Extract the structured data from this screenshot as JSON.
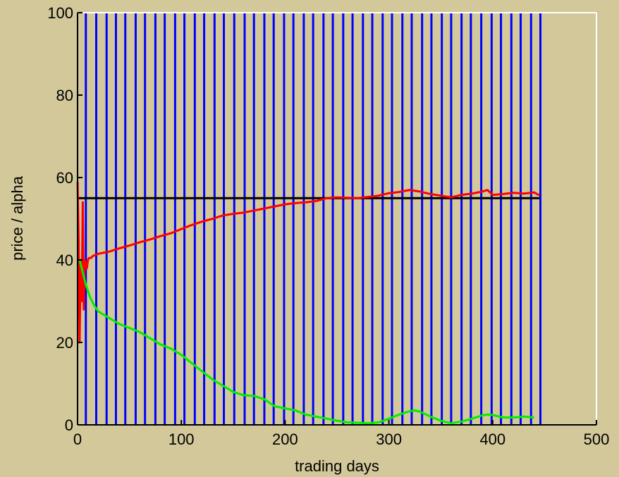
{
  "chart_data": {
    "type": "line",
    "title": "",
    "xlabel": "trading days",
    "ylabel": "price / alpha",
    "xlim": [
      0,
      500
    ],
    "ylim": [
      0,
      100
    ],
    "x_ticks": [
      0,
      100,
      200,
      300,
      400,
      500
    ],
    "y_ticks": [
      0,
      20,
      40,
      60,
      80,
      100
    ],
    "grid": false,
    "legend": "none",
    "colors": {
      "background": "#d2c89a",
      "plot_area": "#d2c89a",
      "box": "#ffffff",
      "axis": "#000000",
      "vertical_lines": "#0000ff",
      "reference_line": "#000000",
      "price_series": "#ff0000",
      "alpha_series": "#00ee00"
    },
    "vertical_lines_x": [
      8,
      18,
      28,
      37,
      46,
      56,
      65,
      75,
      84,
      94,
      103,
      113,
      122,
      132,
      141,
      151,
      161,
      170,
      180,
      189,
      199,
      208,
      218,
      227,
      237,
      246,
      256,
      265,
      275,
      284,
      294,
      303,
      313,
      322,
      332,
      341,
      351,
      360,
      370,
      379,
      389,
      399,
      408,
      418,
      427,
      437,
      446
    ],
    "horizontal_reference": {
      "y": 55,
      "x_start": 0,
      "x_end": 445
    },
    "series": [
      {
        "color": "#ff0000",
        "x": [
          0,
          1,
          2,
          3,
          4,
          5,
          6,
          7,
          8,
          9,
          10,
          11,
          13,
          15,
          20,
          30,
          40,
          50,
          60,
          70,
          80,
          90,
          100,
          110,
          120,
          130,
          140,
          150,
          160,
          170,
          180,
          190,
          200,
          210,
          220,
          230,
          240,
          250,
          260,
          270,
          280,
          290,
          300,
          310,
          320,
          330,
          340,
          350,
          360,
          370,
          380,
          390,
          395,
          400,
          410,
          420,
          430,
          440,
          445
        ],
        "y": [
          59,
          45,
          20,
          40,
          30,
          54,
          28,
          40,
          39,
          38,
          40,
          40.5,
          40.5,
          41,
          41.5,
          42,
          42.8,
          43.5,
          44.3,
          45,
          45.8,
          46.5,
          47.5,
          48.5,
          49.3,
          50,
          50.8,
          51.2,
          51.5,
          52,
          52.5,
          53,
          53.5,
          53.8,
          54,
          54.3,
          55,
          55.2,
          55.1,
          55,
          55.3,
          55.6,
          56.2,
          56.5,
          57,
          56.6,
          56,
          55.6,
          55.2,
          55.8,
          56.1,
          56.6,
          57,
          55.8,
          56,
          56.3,
          56.1,
          56.4,
          55.7
        ]
      },
      {
        "color": "#00ee00",
        "x": [
          2,
          5,
          8,
          12,
          16,
          20,
          30,
          40,
          50,
          60,
          70,
          80,
          90,
          100,
          110,
          120,
          130,
          140,
          150,
          160,
          170,
          180,
          190,
          200,
          210,
          220,
          230,
          240,
          250,
          260,
          270,
          280,
          290,
          300,
          310,
          320,
          325,
          330,
          340,
          350,
          360,
          370,
          380,
          390,
          395,
          400,
          410,
          420,
          430,
          440
        ],
        "y": [
          40,
          37,
          34,
          31,
          29,
          27.5,
          26,
          24.5,
          23.5,
          22.5,
          21,
          19.5,
          18.5,
          17,
          15,
          13,
          11,
          9.5,
          8,
          7.2,
          7,
          6.2,
          4.5,
          4,
          3.5,
          2.5,
          2,
          1.5,
          1,
          0.6,
          0.5,
          0.4,
          0.6,
          1.5,
          2.5,
          3.3,
          3.5,
          3.2,
          2,
          1,
          0.4,
          0.8,
          1.5,
          2.3,
          2.5,
          2.4,
          1.8,
          1.8,
          2,
          1.8
        ]
      }
    ]
  }
}
